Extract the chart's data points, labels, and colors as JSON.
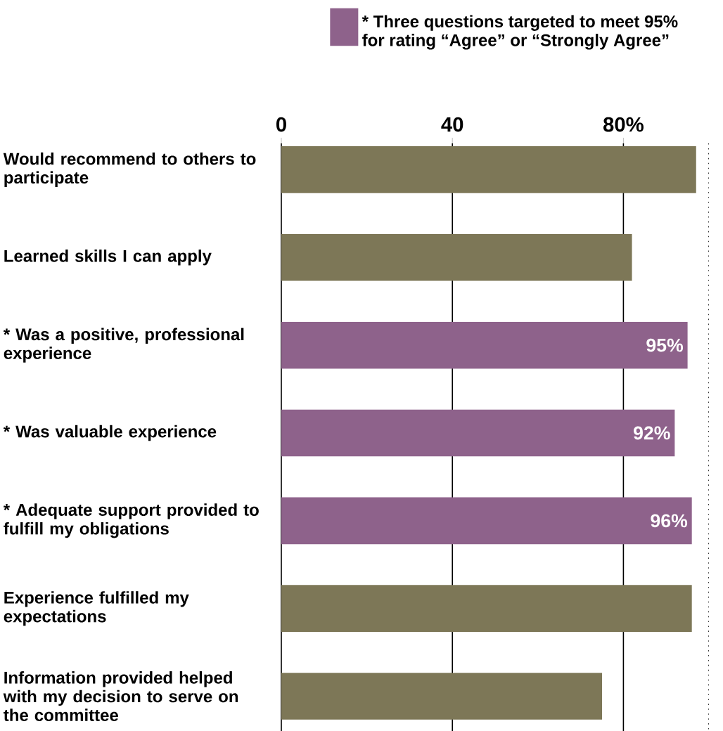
{
  "chart_data": {
    "type": "bar",
    "orientation": "horizontal",
    "categories": [
      "Would recommend to others to participate",
      "Learned skills I can apply",
      "* Was a positive, professional experience",
      "* Was valuable experience",
      "* Adequate support provided to fulfill my obligations",
      "Experience fulfilled my expectations",
      "Information provided helped with my decision to serve on the committee"
    ],
    "series": [
      {
        "color": "#7d7757",
        "values": [
          97,
          82,
          null,
          null,
          null,
          96,
          75
        ]
      },
      {
        "name": "* Three questions targeted to meet 95% for rating “Agree” or “Strongly Agree”",
        "color": "#8e628b",
        "values": [
          null,
          null,
          95,
          92,
          96,
          null,
          null
        ],
        "value_labels": [
          null,
          null,
          "95%",
          "92%",
          "96%",
          null,
          null
        ]
      }
    ],
    "xlim": [
      0,
      100
    ],
    "xticks": [
      0,
      40,
      {
        "value": 80,
        "label": "80%"
      }
    ],
    "grid": "x",
    "legend": "top"
  }
}
